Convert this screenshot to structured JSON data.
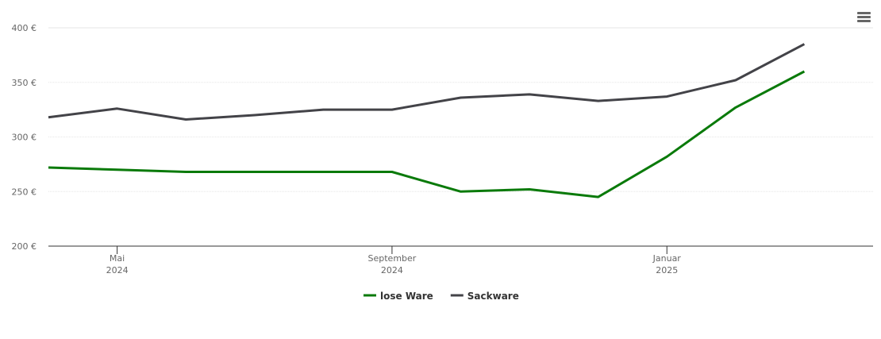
{
  "chart_data": {
    "type": "line",
    "x": [
      "2024-04",
      "2024-05",
      "2024-06",
      "2024-07",
      "2024-08",
      "2024-09",
      "2024-10",
      "2024-11",
      "2024-12",
      "2025-01",
      "2025-02",
      "2025-03"
    ],
    "xlim": [
      "2024-04",
      "2025-04"
    ],
    "xticks": [
      {
        "value": "2024-05",
        "label": [
          "Mai",
          "2024"
        ]
      },
      {
        "value": "2024-09",
        "label": [
          "September",
          "2024"
        ]
      },
      {
        "value": "2025-01",
        "label": [
          "Januar",
          "2025"
        ]
      }
    ],
    "ylim": [
      200,
      400
    ],
    "yticks": [
      {
        "value": 200,
        "label": "200 €"
      },
      {
        "value": 250,
        "label": "250 €"
      },
      {
        "value": 300,
        "label": "300 €"
      },
      {
        "value": 350,
        "label": "350 €"
      },
      {
        "value": 400,
        "label": "400 €"
      }
    ],
    "grid": true,
    "series": [
      {
        "name": "lose Ware",
        "color": "#0a7a0a",
        "values": [
          272,
          270,
          268,
          268,
          268,
          268,
          250,
          252,
          245,
          282,
          327,
          360
        ]
      },
      {
        "name": "Sackware",
        "color": "#434348",
        "values": [
          318,
          326,
          316,
          320,
          325,
          325,
          336,
          339,
          333,
          337,
          352,
          385
        ]
      }
    ]
  }
}
